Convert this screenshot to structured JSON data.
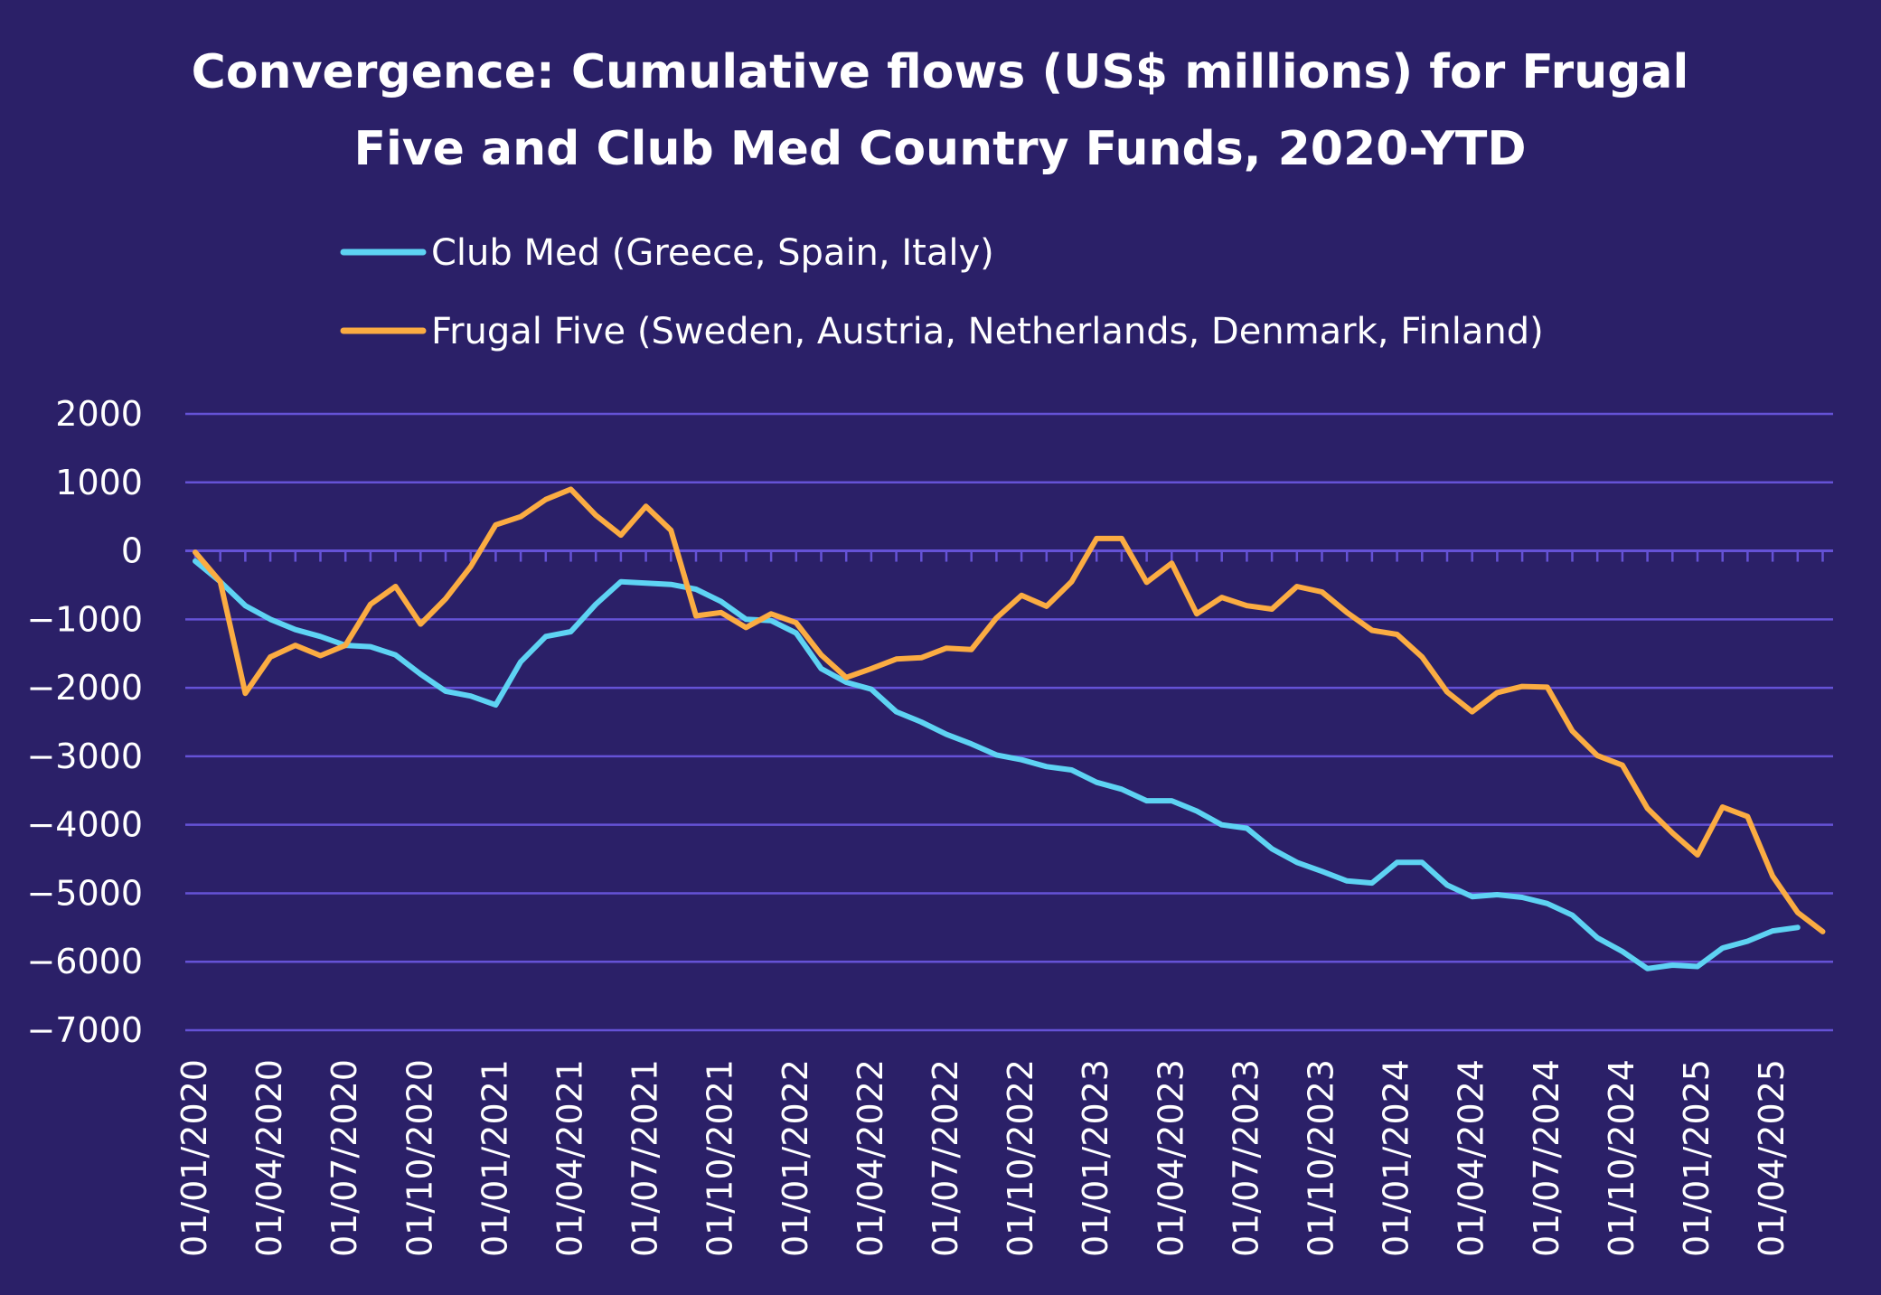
{
  "chart_data": {
    "type": "line",
    "title_lines": [
      "Convergence: Cumulative flows (US$ millions) for Frugal",
      "Five and Club Med Country Funds, 2020-YTD"
    ],
    "ylim": [
      -7000,
      2000
    ],
    "yticks": [
      2000,
      1000,
      0,
      -1000,
      -2000,
      -3000,
      -4000,
      -5000,
      -6000,
      -7000
    ],
    "ytick_labels": [
      "2000",
      "1000",
      "0",
      "−1000",
      "−2000",
      "−3000",
      "−4000",
      "−5000",
      "−6000",
      "−7000"
    ],
    "x_tick_labels": [
      "01/01/2020",
      "01/04/2020",
      "01/07/2020",
      "01/10/2020",
      "01/01/2021",
      "01/04/2021",
      "01/07/2021",
      "01/10/2021",
      "01/01/2022",
      "01/04/2022",
      "01/07/2022",
      "01/10/2022",
      "01/01/2023",
      "01/04/2023",
      "01/07/2023",
      "01/10/2023",
      "01/01/2024",
      "01/04/2024",
      "01/07/2024",
      "01/10/2024",
      "01/01/2025",
      "01/04/2025"
    ],
    "x_tick_period_months": 3,
    "legend_position": "top",
    "grid": true,
    "series": [
      {
        "name": "Club Med (Greece, Spain, Italy)",
        "color": "#5ed3f3",
        "values": [
          -150,
          -450,
          -800,
          -1000,
          -1150,
          -1250,
          -1380,
          -1400,
          -1520,
          -1800,
          -2050,
          -2120,
          -2250,
          -1620,
          -1250,
          -1180,
          -780,
          -450,
          -470,
          -490,
          -560,
          -740,
          -1000,
          -1020,
          -1200,
          -1720,
          -1920,
          -2020,
          -2350,
          -2500,
          -2680,
          -2820,
          -2980,
          -3050,
          -3150,
          -3200,
          -3380,
          -3480,
          -3650,
          -3650,
          -3800,
          -4000,
          -4050,
          -4350,
          -4550,
          -4680,
          -4820,
          -4850,
          -4550,
          -4550,
          -4880,
          -5050,
          -5020,
          -5060,
          -5150,
          -5320,
          -5650,
          -5850,
          -6100,
          -6050,
          -6070,
          -5800,
          -5700,
          -5550,
          -5500
        ]
      },
      {
        "name": "Frugal Five (Sweden, Austria, Netherlands, Denmark, Finland)",
        "color": "#fbac42",
        "values": [
          -20,
          -450,
          -2080,
          -1550,
          -1380,
          -1530,
          -1380,
          -780,
          -520,
          -1070,
          -700,
          -230,
          380,
          500,
          750,
          900,
          520,
          230,
          650,
          300,
          -950,
          -900,
          -1120,
          -920,
          -1050,
          -1520,
          -1850,
          -1720,
          -1580,
          -1560,
          -1420,
          -1440,
          -980,
          -650,
          -810,
          -450,
          180,
          180,
          -460,
          -180,
          -920,
          -680,
          -800,
          -850,
          -520,
          -600,
          -900,
          -1160,
          -1220,
          -1550,
          -2060,
          -2350,
          -2070,
          -1980,
          -1990,
          -2630,
          -2990,
          -3130,
          -3760,
          -4120,
          -4440,
          -3740,
          -3880,
          -4750,
          -5280,
          -5560
        ]
      }
    ]
  }
}
